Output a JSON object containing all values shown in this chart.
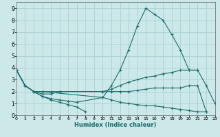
{
  "xlabel": "Humidex (Indice chaleur)",
  "xlim": [
    0,
    23
  ],
  "ylim": [
    0,
    9.5
  ],
  "xticks": [
    0,
    1,
    2,
    3,
    4,
    5,
    6,
    7,
    8,
    9,
    10,
    11,
    12,
    13,
    14,
    15,
    16,
    17,
    18,
    19,
    20,
    21,
    22,
    23
  ],
  "yticks": [
    0,
    1,
    2,
    3,
    4,
    5,
    6,
    7,
    8,
    9
  ],
  "bg_color": "#cce8e8",
  "grid_color": "#aed4d4",
  "line_color": "#1a6b6b",
  "series": [
    {
      "x": [
        0,
        1,
        2,
        3,
        4,
        5,
        6,
        7,
        10,
        11,
        12,
        13,
        14,
        15,
        16,
        17,
        18,
        19,
        20,
        21,
        22,
        23
      ],
      "y": [
        3.8,
        2.5,
        2.0,
        1.6,
        1.4,
        1.3,
        1.2,
        1.1,
        1.5,
        2.5,
        3.8,
        5.5,
        7.5,
        9.0,
        8.5,
        8.0,
        6.8,
        5.5,
        3.8,
        3.8,
        2.5,
        1.0
      ]
    },
    {
      "x": [
        0,
        1,
        2,
        3,
        4,
        5,
        10,
        11,
        12,
        13,
        14,
        15,
        16,
        17,
        18,
        19,
        20,
        21
      ],
      "y": [
        3.8,
        2.5,
        2.0,
        1.8,
        1.8,
        2.0,
        2.0,
        2.2,
        2.5,
        2.8,
        3.0,
        3.2,
        3.3,
        3.5,
        3.6,
        3.8,
        3.8,
        3.8
      ]
    },
    {
      "x": [
        0,
        1,
        2,
        3,
        4,
        5,
        10,
        11,
        12,
        13,
        14,
        15,
        16,
        17,
        18,
        19,
        20,
        21,
        22
      ],
      "y": [
        3.8,
        2.5,
        2.0,
        2.0,
        2.0,
        2.0,
        2.0,
        2.0,
        2.0,
        2.0,
        2.1,
        2.2,
        2.3,
        2.3,
        2.3,
        2.3,
        2.5,
        2.5,
        0.3
      ]
    },
    {
      "x": [
        0,
        1,
        2,
        3,
        10,
        11,
        12,
        13,
        14,
        15,
        16,
        17,
        18,
        19,
        20,
        21,
        22
      ],
      "y": [
        3.8,
        2.5,
        2.0,
        2.0,
        1.5,
        1.3,
        1.1,
        1.0,
        0.9,
        0.8,
        0.8,
        0.7,
        0.6,
        0.5,
        0.4,
        0.3,
        0.3
      ]
    },
    {
      "x": [
        0,
        1,
        2,
        3,
        4,
        5,
        6,
        7,
        8
      ],
      "y": [
        3.8,
        2.5,
        2.0,
        1.6,
        1.3,
        1.1,
        0.9,
        0.7,
        0.3
      ]
    }
  ]
}
